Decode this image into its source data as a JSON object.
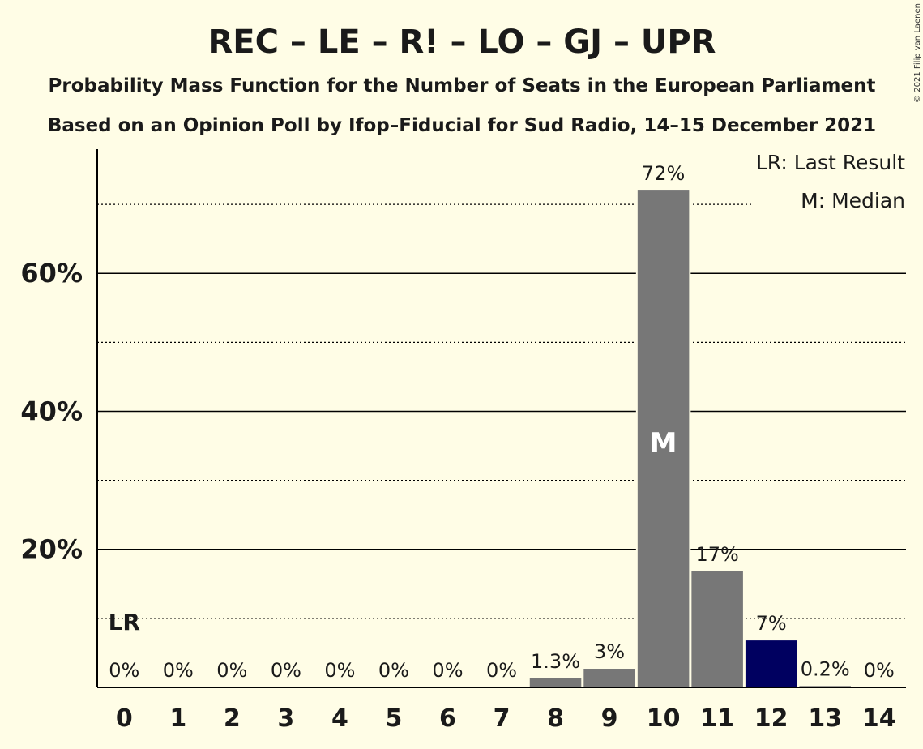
{
  "header": {
    "title": "REC – LE – R! – LO – GJ – UPR",
    "subtitle1": "Probability Mass Function for the Number of Seats in the European Parliament",
    "subtitle2": "Based on an Opinion Poll by Ifop–Fiducial for Sud Radio, 14–15 December 2021",
    "copyright": "© 2021 Filip van Laenen"
  },
  "legend": {
    "last_result": "LR: Last Result",
    "median": "M: Median"
  },
  "markers": {
    "last_result_label": "LR",
    "median_label": "M"
  },
  "colors": {
    "background": "#fffde6",
    "bar": "#777777",
    "highlight_bar": "#000060",
    "text": "#1a1a1a"
  },
  "chart_data": {
    "type": "bar",
    "categories": [
      "0",
      "1",
      "2",
      "3",
      "4",
      "5",
      "6",
      "7",
      "8",
      "9",
      "10",
      "11",
      "12",
      "13",
      "14"
    ],
    "values": [
      0,
      0,
      0,
      0,
      0,
      0,
      0,
      0,
      1.3,
      2.7,
      72,
      16.8,
      6.8,
      0.2,
      0
    ],
    "value_labels": [
      "0%",
      "0%",
      "0%",
      "0%",
      "0%",
      "0%",
      "0%",
      "0%",
      "1.3%",
      "3%",
      "72%",
      "17%",
      "7%",
      "0.2%",
      "0%"
    ],
    "highlight_index": 12,
    "last_result_index": 0,
    "median_index": 10,
    "ylim": [
      0,
      78
    ],
    "yticks": [
      20,
      40,
      60
    ],
    "ytick_labels": [
      "20%",
      "40%",
      "60%"
    ],
    "minor_gridlines": [
      10,
      30,
      50,
      70
    ],
    "xlabel": "",
    "ylabel": ""
  }
}
